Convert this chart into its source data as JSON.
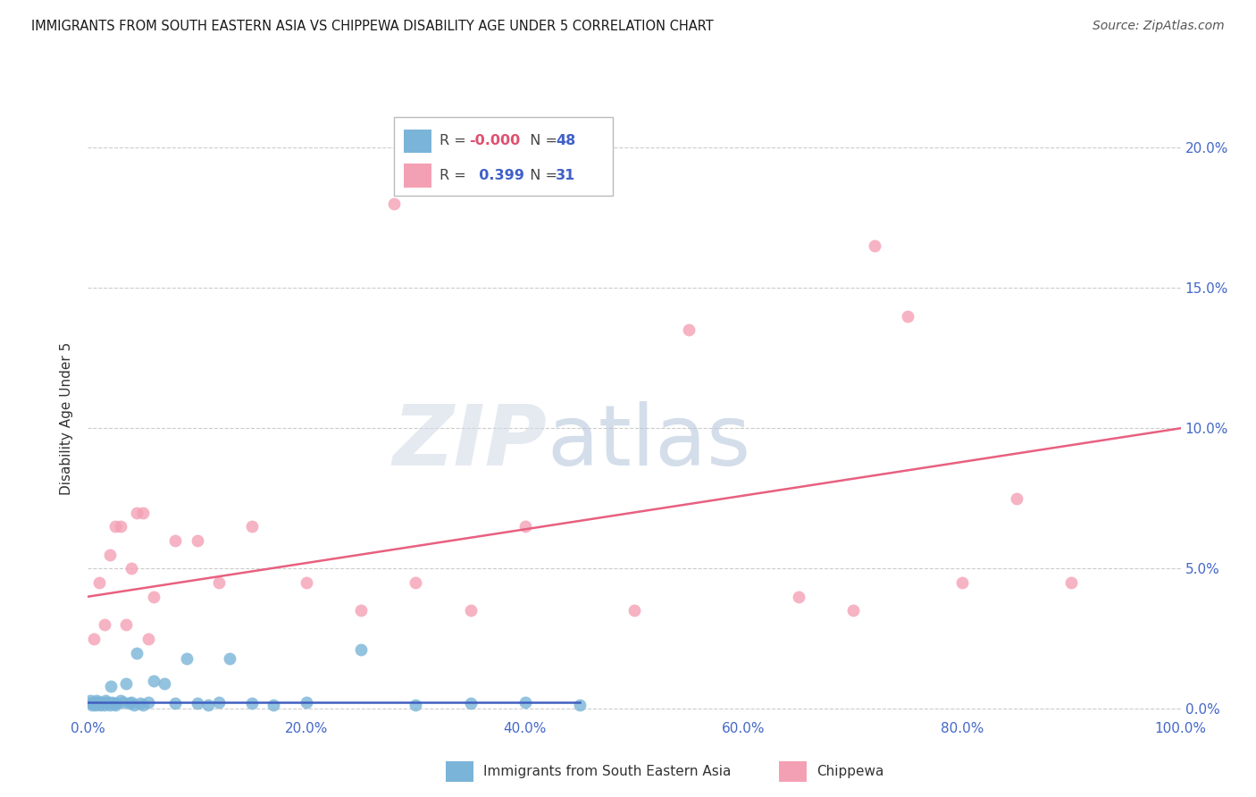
{
  "title": "IMMIGRANTS FROM SOUTH EASTERN ASIA VS CHIPPEWA DISABILITY AGE UNDER 5 CORRELATION CHART",
  "source": "Source: ZipAtlas.com",
  "ylabel": "Disability Age Under 5",
  "legend_blue_r": "-0.000",
  "legend_blue_n": "48",
  "legend_pink_r": "0.399",
  "legend_pink_n": "31",
  "blue_color": "#7ab4d8",
  "pink_color": "#f4a0b4",
  "blue_line_color": "#4060c0",
  "pink_line_color": "#e86080",
  "blue_scatter": [
    [
      0.2,
      0.3
    ],
    [
      0.3,
      0.2
    ],
    [
      0.4,
      0.15
    ],
    [
      0.5,
      0.25
    ],
    [
      0.6,
      0.2
    ],
    [
      0.7,
      0.15
    ],
    [
      0.8,
      0.3
    ],
    [
      0.9,
      0.25
    ],
    [
      1.0,
      0.2
    ],
    [
      1.1,
      0.15
    ],
    [
      1.2,
      0.25
    ],
    [
      1.3,
      0.2
    ],
    [
      1.5,
      0.15
    ],
    [
      1.6,
      0.3
    ],
    [
      1.7,
      0.25
    ],
    [
      1.8,
      0.2
    ],
    [
      2.0,
      0.15
    ],
    [
      2.1,
      0.8
    ],
    [
      2.2,
      0.25
    ],
    [
      2.4,
      0.2
    ],
    [
      2.5,
      0.15
    ],
    [
      2.6,
      0.2
    ],
    [
      3.0,
      0.3
    ],
    [
      3.2,
      0.25
    ],
    [
      3.5,
      0.9
    ],
    [
      3.8,
      0.2
    ],
    [
      4.0,
      0.25
    ],
    [
      4.2,
      0.15
    ],
    [
      4.5,
      2.0
    ],
    [
      4.8,
      0.2
    ],
    [
      5.0,
      0.15
    ],
    [
      5.5,
      0.25
    ],
    [
      6.0,
      1.0
    ],
    [
      7.0,
      0.9
    ],
    [
      8.0,
      0.2
    ],
    [
      9.0,
      1.8
    ],
    [
      10.0,
      0.2
    ],
    [
      11.0,
      0.15
    ],
    [
      12.0,
      0.25
    ],
    [
      13.0,
      1.8
    ],
    [
      15.0,
      0.2
    ],
    [
      17.0,
      0.15
    ],
    [
      20.0,
      0.25
    ],
    [
      25.0,
      2.1
    ],
    [
      30.0,
      0.15
    ],
    [
      35.0,
      0.2
    ],
    [
      40.0,
      0.25
    ],
    [
      45.0,
      0.15
    ]
  ],
  "pink_scatter": [
    [
      0.5,
      2.5
    ],
    [
      1.0,
      4.5
    ],
    [
      1.5,
      3.0
    ],
    [
      2.0,
      5.5
    ],
    [
      2.5,
      6.5
    ],
    [
      3.0,
      6.5
    ],
    [
      3.5,
      3.0
    ],
    [
      4.0,
      5.0
    ],
    [
      4.5,
      7.0
    ],
    [
      5.0,
      7.0
    ],
    [
      5.5,
      2.5
    ],
    [
      6.0,
      4.0
    ],
    [
      8.0,
      6.0
    ],
    [
      10.0,
      6.0
    ],
    [
      12.0,
      4.5
    ],
    [
      15.0,
      6.5
    ],
    [
      20.0,
      4.5
    ],
    [
      25.0,
      3.5
    ],
    [
      28.0,
      18.0
    ],
    [
      30.0,
      4.5
    ],
    [
      35.0,
      3.5
    ],
    [
      40.0,
      6.5
    ],
    [
      50.0,
      3.5
    ],
    [
      55.0,
      13.5
    ],
    [
      65.0,
      4.0
    ],
    [
      70.0,
      3.5
    ],
    [
      72.0,
      16.5
    ],
    [
      75.0,
      14.0
    ],
    [
      80.0,
      4.5
    ],
    [
      85.0,
      7.5
    ],
    [
      90.0,
      4.5
    ]
  ],
  "blue_line_x": [
    0,
    45
  ],
  "blue_line_y": [
    0.25,
    0.25
  ],
  "pink_line_x": [
    0,
    100
  ],
  "pink_line_y": [
    4.0,
    10.0
  ],
  "xlim": [
    0,
    100
  ],
  "ylim": [
    -0.3,
    21
  ],
  "yticks": [
    0,
    5,
    10,
    15,
    20
  ],
  "xticks": [
    0,
    20,
    40,
    60,
    80,
    100
  ],
  "tick_color": "#4468c8",
  "grid_color": "#cccccc",
  "watermark_zip": "ZIP",
  "watermark_atlas": "atlas",
  "watermark_zip_color": "#d4dce8",
  "watermark_atlas_color": "#b8c8dc"
}
